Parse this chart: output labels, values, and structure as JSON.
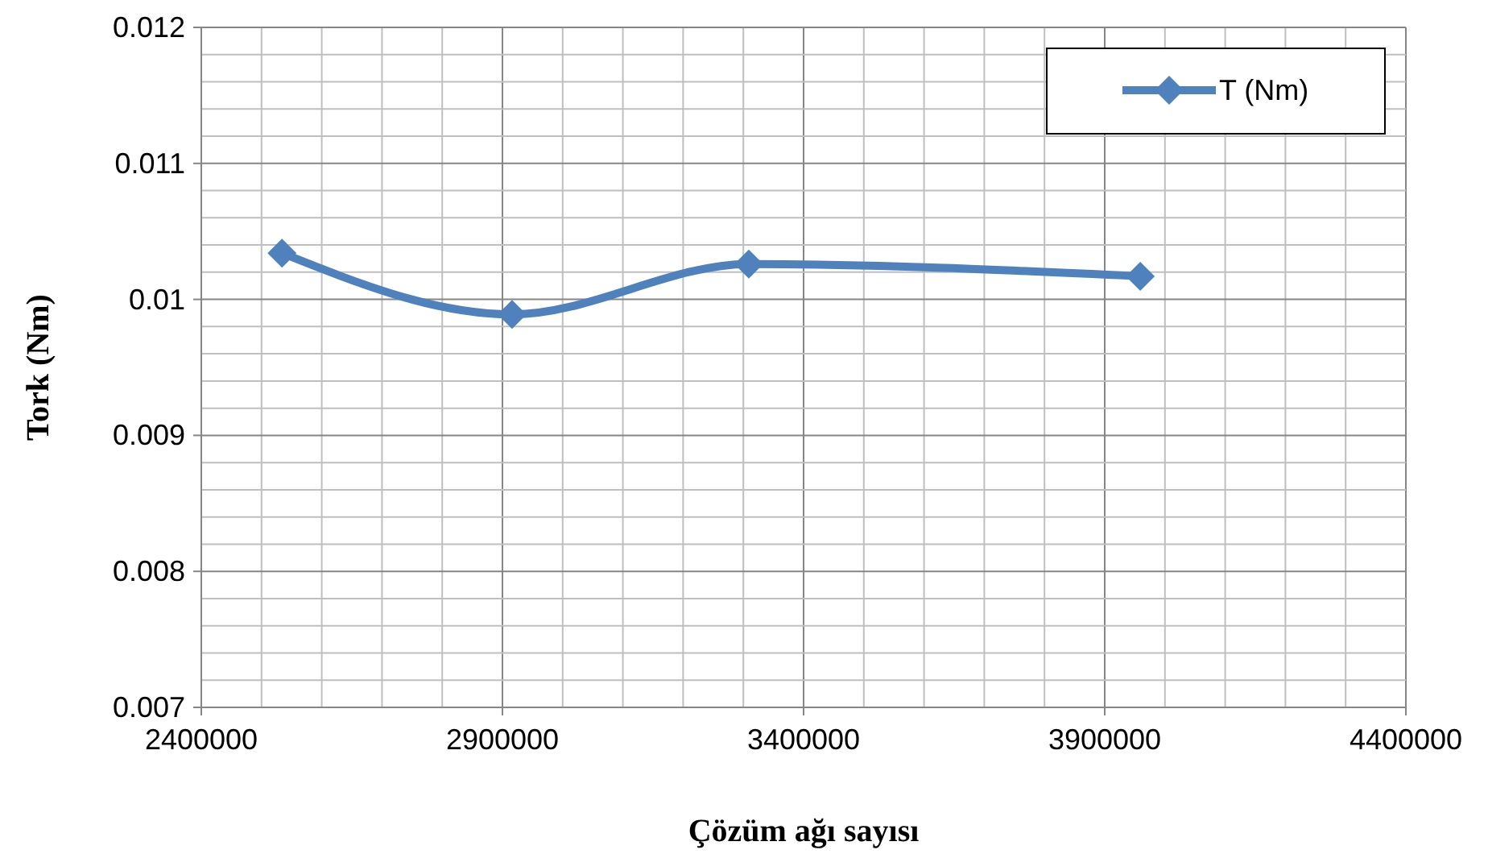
{
  "chart_data": {
    "type": "line",
    "xlabel": "Çözüm ağı sayısı",
    "ylabel": "Tork (Nm)",
    "x": [
      2534000,
      2916000,
      3309000,
      3959000
    ],
    "series": [
      {
        "name": "T (Nm)",
        "color": "#4f81bd",
        "values": [
          0.01034,
          0.00989,
          0.01026,
          0.01017
        ]
      }
    ],
    "xlim": [
      2400000,
      4400000
    ],
    "xticks": [
      2400000,
      2900000,
      3400000,
      3900000,
      4400000
    ],
    "ylim": [
      0.007,
      0.012
    ],
    "yticks": [
      0.007,
      0.008,
      0.009,
      0.01,
      0.011,
      0.012
    ],
    "grid": true,
    "legend": "top right",
    "marker": "diamond",
    "line_style": "solid"
  }
}
